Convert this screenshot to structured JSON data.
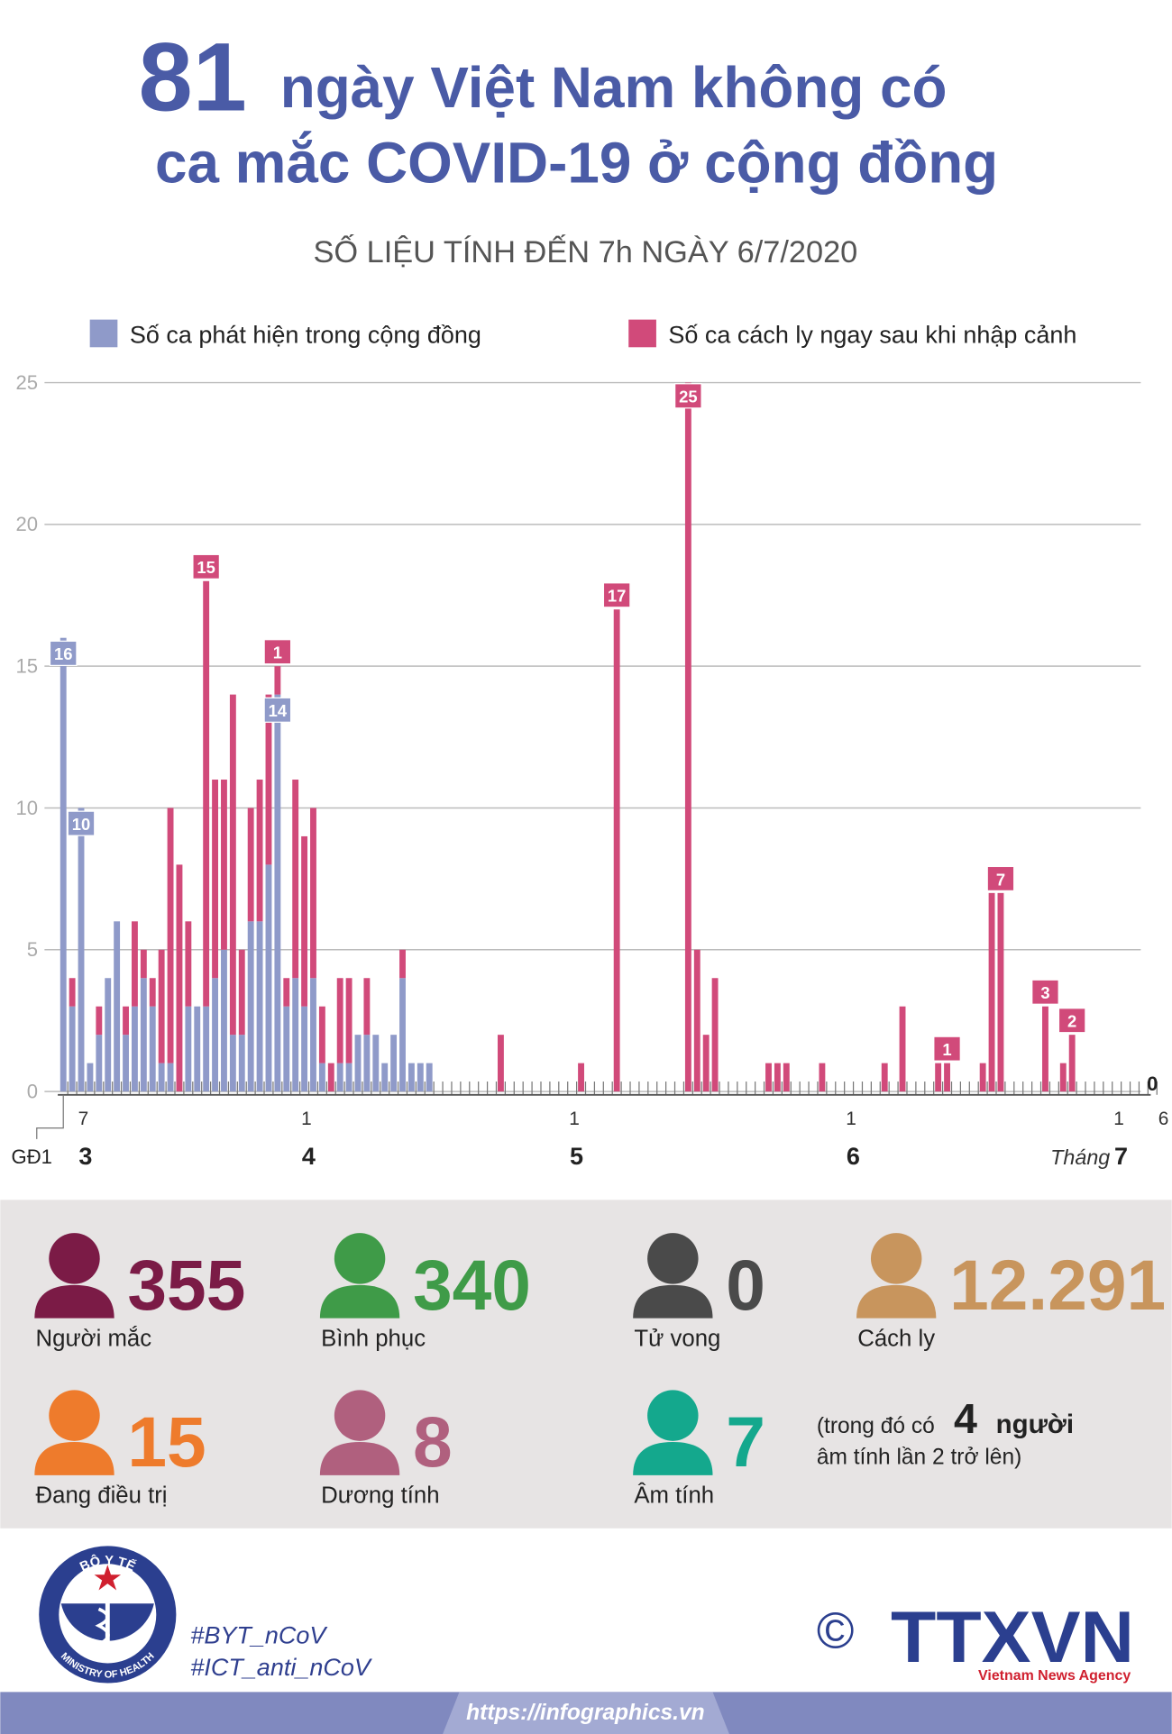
{
  "header": {
    "number": "81",
    "line1": "ngày Việt Nam không có",
    "line2": "ca mắc COVID-19 ở cộng đồng",
    "subtitle": "SỐ LIỆU TÍNH ĐẾN 7h NGÀY 6/7/2020"
  },
  "chart_data": {
    "type": "bar",
    "stacked": true,
    "categories": [
      null,
      "7",
      null,
      null,
      null,
      null,
      null,
      null,
      null,
      null,
      null,
      null,
      null,
      null,
      null,
      null,
      null,
      null,
      null,
      null,
      null,
      null,
      null,
      null,
      null,
      null,
      "1",
      null,
      null,
      null,
      null,
      null,
      null,
      null,
      null,
      null,
      null,
      null,
      null,
      null,
      null,
      null,
      null,
      null,
      null,
      null,
      null,
      null,
      null,
      null,
      null,
      null,
      null,
      null,
      null,
      null,
      "1",
      null,
      null,
      null,
      null,
      null,
      null,
      null,
      null,
      null,
      null,
      null,
      null,
      null,
      null,
      null,
      null,
      null,
      null,
      null,
      null,
      null,
      null,
      null,
      null,
      null,
      null,
      null,
      null,
      null,
      null,
      "1",
      null,
      null,
      null,
      null,
      null,
      null,
      null,
      null,
      null,
      null,
      null,
      null,
      null,
      null,
      null,
      null,
      null,
      null,
      null,
      null,
      null,
      null,
      null,
      null,
      null,
      null,
      null,
      null,
      null,
      "1",
      null,
      null,
      null,
      null,
      "6"
    ],
    "x_months": [
      null,
      "3",
      null,
      null,
      null,
      null,
      null,
      null,
      null,
      null,
      null,
      null,
      null,
      null,
      null,
      null,
      null,
      null,
      null,
      null,
      null,
      null,
      null,
      null,
      null,
      null,
      "4",
      null,
      null,
      null,
      null,
      null,
      null,
      null,
      null,
      null,
      null,
      null,
      null,
      null,
      null,
      null,
      null,
      null,
      null,
      null,
      null,
      null,
      null,
      null,
      null,
      null,
      null,
      null,
      null,
      null,
      "5",
      null,
      null,
      null,
      null,
      null,
      null,
      null,
      null,
      null,
      null,
      null,
      null,
      null,
      null,
      null,
      null,
      null,
      null,
      null,
      null,
      null,
      null,
      null,
      null,
      null,
      null,
      null,
      null,
      null,
      null,
      "6",
      null,
      null,
      null,
      null,
      null,
      null,
      null,
      null,
      null,
      null,
      null,
      null,
      null,
      null,
      null,
      null,
      null,
      null,
      null,
      null,
      null,
      null,
      null,
      null,
      null,
      null,
      null,
      null,
      null,
      "7",
      null,
      null,
      null,
      null,
      null
    ],
    "month_prefix": "Tháng",
    "annotation": "GĐ1",
    "ylim": [
      0,
      25
    ],
    "yticks": [
      0,
      5,
      10,
      15,
      20,
      25
    ],
    "grid": true,
    "series": [
      {
        "name": "Số ca phát hiện trong cộng đồng",
        "color": "#8f9ac9",
        "values": [
          16,
          3,
          10,
          1,
          2,
          4,
          6,
          2,
          3,
          4,
          3,
          1,
          1,
          0,
          3,
          3,
          3,
          4,
          5,
          2,
          2,
          6,
          6,
          8,
          14,
          3,
          4,
          3,
          4,
          1,
          0,
          1,
          1,
          2,
          2,
          2,
          1,
          2,
          4,
          1,
          1,
          1,
          0,
          0,
          0,
          0,
          0,
          0,
          0,
          0,
          0,
          0,
          0,
          0,
          0,
          0,
          0,
          0,
          0,
          0,
          0,
          0,
          0,
          0,
          0,
          0,
          0,
          0,
          0,
          0,
          0,
          0,
          0,
          0,
          0,
          0,
          0,
          0,
          0,
          0,
          0,
          0,
          0,
          0,
          0,
          0,
          0,
          0,
          0,
          0,
          0,
          0,
          0,
          0,
          0,
          0,
          0,
          0,
          0,
          0,
          0,
          0,
          0,
          0,
          0,
          0,
          0,
          0,
          0,
          0,
          0,
          0,
          0,
          0,
          0,
          0,
          0,
          0,
          0,
          0,
          0,
          0,
          0
        ],
        "value_labels": [
          "16",
          null,
          "10",
          null,
          null,
          null,
          null,
          null,
          null,
          null,
          null,
          null,
          null,
          null,
          null,
          null,
          null,
          null,
          null,
          null,
          null,
          null,
          null,
          null,
          "14",
          null,
          null,
          null,
          null,
          null,
          null,
          null,
          null,
          null,
          null,
          null,
          null,
          null,
          null,
          null,
          null,
          null,
          null,
          null,
          null,
          null,
          null,
          null,
          null,
          null,
          null,
          null,
          null,
          null,
          null,
          null,
          null,
          null,
          null,
          null,
          null,
          null,
          null,
          null,
          null,
          null,
          null,
          null,
          null,
          null,
          null,
          null,
          null,
          null,
          null,
          null,
          null,
          null,
          null,
          null,
          null,
          null,
          null,
          null,
          null,
          null,
          null,
          null,
          null,
          null,
          null,
          null,
          null,
          null,
          null,
          null,
          null,
          null,
          null,
          null,
          null,
          null,
          null,
          null,
          null,
          null,
          null,
          null,
          null,
          null,
          null,
          null,
          null,
          null,
          null,
          null,
          null,
          null,
          null,
          null,
          null,
          null,
          "0"
        ]
      },
      {
        "name": "Số ca cách ly ngay sau khi nhập cảnh",
        "color": "#d14a7a",
        "values": [
          0,
          1,
          0,
          0,
          1,
          0,
          0,
          1,
          3,
          1,
          1,
          4,
          9,
          8,
          3,
          0,
          15,
          7,
          6,
          12,
          3,
          4,
          5,
          6,
          1,
          1,
          7,
          6,
          6,
          2,
          1,
          3,
          3,
          0,
          2,
          0,
          0,
          0,
          1,
          0,
          0,
          0,
          0,
          0,
          0,
          0,
          0,
          0,
          0,
          2,
          0,
          0,
          0,
          0,
          0,
          0,
          0,
          0,
          1,
          0,
          0,
          0,
          17,
          0,
          0,
          0,
          0,
          0,
          0,
          0,
          25,
          5,
          2,
          4,
          0,
          0,
          0,
          0,
          0,
          1,
          1,
          1,
          0,
          0,
          0,
          1,
          0,
          0,
          0,
          0,
          0,
          0,
          1,
          0,
          3,
          0,
          0,
          0,
          1,
          1,
          0,
          0,
          0,
          1,
          7,
          7,
          0,
          0,
          0,
          0,
          3,
          0,
          1,
          2,
          0,
          0,
          0,
          0,
          0,
          0,
          0,
          0,
          0
        ],
        "value_labels": [
          null,
          null,
          null,
          null,
          null,
          null,
          null,
          null,
          null,
          null,
          null,
          null,
          null,
          null,
          null,
          null,
          "15",
          null,
          null,
          null,
          null,
          null,
          null,
          null,
          "1",
          null,
          null,
          null,
          null,
          null,
          null,
          null,
          null,
          null,
          null,
          null,
          null,
          null,
          null,
          null,
          null,
          null,
          null,
          null,
          null,
          null,
          null,
          null,
          null,
          null,
          null,
          null,
          null,
          null,
          null,
          null,
          null,
          null,
          null,
          null,
          null,
          null,
          "17",
          null,
          null,
          null,
          null,
          null,
          null,
          null,
          "25",
          null,
          null,
          null,
          null,
          null,
          null,
          null,
          null,
          null,
          null,
          null,
          null,
          null,
          null,
          null,
          null,
          null,
          null,
          null,
          null,
          null,
          null,
          null,
          null,
          null,
          null,
          null,
          null,
          "1",
          null,
          null,
          null,
          null,
          null,
          "7",
          null,
          null,
          null,
          null,
          "3",
          null,
          null,
          "2",
          null,
          null,
          null,
          null,
          null,
          null,
          null,
          null,
          null
        ]
      }
    ]
  },
  "stats": {
    "items": [
      {
        "value": 355,
        "label": "Người mắc",
        "color": "#7b1b46"
      },
      {
        "value": 340,
        "label": "Bình phục",
        "color": "#3f9b48"
      },
      {
        "value": 0,
        "label": "Tử vong",
        "color": "#4a4a4a"
      },
      {
        "value": {
          "value": 12291,
          "label": "12.291"
        },
        "label": "Cách ly",
        "color": "#c8955d"
      },
      {
        "value": 15,
        "label": "Đang điều trị",
        "color": "#ee7b2c"
      },
      {
        "value": 8,
        "label": "Dương tính",
        "color": "#b0607e"
      },
      {
        "value": 7,
        "label": "Âm tính",
        "color": "#14a88d"
      }
    ],
    "note": {
      "before": "(trong đó có",
      "count": 4,
      "after": "người",
      "line2": "âm tính lần 2 trở lên)"
    }
  },
  "footer": {
    "logo_top": "BỘ Y TẾ",
    "logo_bottom": "MINISTRY OF HEALTH",
    "hashtags": [
      "#BYT_nCoV",
      "#ICT_anti_nCoV"
    ],
    "copyright": "©",
    "agency": "TTXVN",
    "agency_sub": "Vietnam News Agency",
    "url": "https://infographics.vn"
  }
}
